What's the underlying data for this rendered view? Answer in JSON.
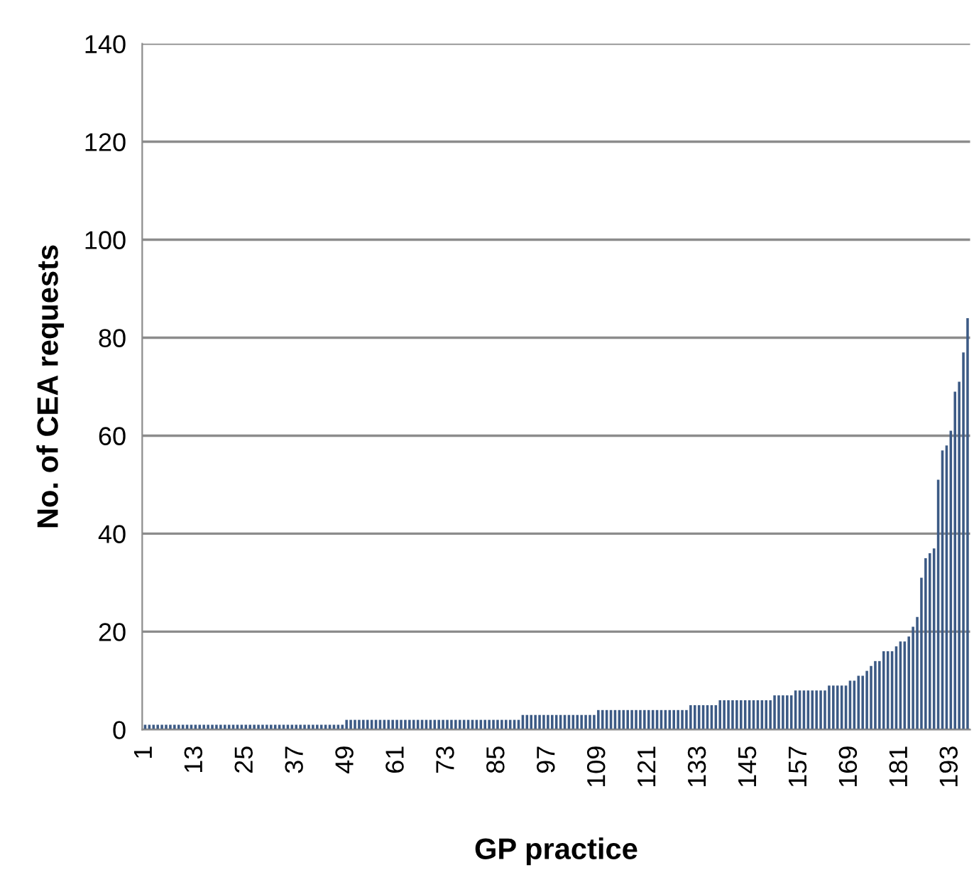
{
  "chart_data": {
    "type": "bar",
    "xlabel": "GP practice",
    "ylabel": "No. of CEA requests",
    "categories": [
      "1",
      null,
      null,
      null,
      null,
      null,
      null,
      null,
      null,
      null,
      null,
      null,
      "13",
      null,
      null,
      null,
      null,
      null,
      null,
      null,
      null,
      null,
      null,
      null,
      "25",
      null,
      null,
      null,
      null,
      null,
      null,
      null,
      null,
      null,
      null,
      null,
      "37",
      null,
      null,
      null,
      null,
      null,
      null,
      null,
      null,
      null,
      null,
      null,
      "49",
      null,
      null,
      null,
      null,
      null,
      null,
      null,
      null,
      null,
      null,
      null,
      "61",
      null,
      null,
      null,
      null,
      null,
      null,
      null,
      null,
      null,
      null,
      null,
      "73",
      null,
      null,
      null,
      null,
      null,
      null,
      null,
      null,
      null,
      null,
      null,
      "85",
      null,
      null,
      null,
      null,
      null,
      null,
      null,
      null,
      null,
      null,
      null,
      "97",
      null,
      null,
      null,
      null,
      null,
      null,
      null,
      null,
      null,
      null,
      null,
      "109",
      null,
      null,
      null,
      null,
      null,
      null,
      null,
      null,
      null,
      null,
      null,
      "121",
      null,
      null,
      null,
      null,
      null,
      null,
      null,
      null,
      null,
      null,
      null,
      "133",
      null,
      null,
      null,
      null,
      null,
      null,
      null,
      null,
      null,
      null,
      null,
      "145",
      null,
      null,
      null,
      null,
      null,
      null,
      null,
      null,
      null,
      null,
      null,
      "157",
      null,
      null,
      null,
      null,
      null,
      null,
      null,
      null,
      null,
      null,
      null,
      "169",
      null,
      null,
      null,
      null,
      null,
      null,
      null,
      null,
      null,
      null,
      null,
      "181",
      null,
      null,
      null,
      null,
      null,
      null,
      null,
      null,
      null,
      null,
      null,
      "193",
      null,
      null,
      null,
      null
    ],
    "values": [
      1,
      1,
      1,
      1,
      1,
      1,
      1,
      1,
      1,
      1,
      1,
      1,
      1,
      1,
      1,
      1,
      1,
      1,
      1,
      1,
      1,
      1,
      1,
      1,
      1,
      1,
      1,
      1,
      1,
      1,
      1,
      1,
      1,
      1,
      1,
      1,
      1,
      1,
      1,
      1,
      1,
      1,
      1,
      1,
      1,
      1,
      1,
      1,
      2,
      2,
      2,
      2,
      2,
      2,
      2,
      2,
      2,
      2,
      2,
      2,
      2,
      2,
      2,
      2,
      2,
      2,
      2,
      2,
      2,
      2,
      2,
      2,
      2,
      2,
      2,
      2,
      2,
      2,
      2,
      2,
      2,
      2,
      2,
      2,
      2,
      2,
      2,
      2,
      2,
      2,
      3,
      3,
      3,
      3,
      3,
      3,
      3,
      3,
      3,
      3,
      3,
      3,
      3,
      3,
      3,
      3,
      3,
      3,
      4,
      4,
      4,
      4,
      4,
      4,
      4,
      4,
      4,
      4,
      4,
      4,
      4,
      4,
      4,
      4,
      4,
      4,
      4,
      4,
      4,
      4,
      5,
      5,
      5,
      5,
      5,
      5,
      5,
      6,
      6,
      6,
      6,
      6,
      6,
      6,
      6,
      6,
      6,
      6,
      6,
      6,
      7,
      7,
      7,
      7,
      7,
      8,
      8,
      8,
      8,
      8,
      8,
      8,
      8,
      9,
      9,
      9,
      9,
      9,
      10,
      10,
      11,
      11,
      12,
      13,
      14,
      14,
      16,
      16,
      16,
      17,
      18,
      18,
      19,
      21,
      23,
      31,
      35,
      36,
      37,
      51,
      57,
      58,
      61,
      69,
      71,
      77,
      84
    ],
    "color": "#3c5a85",
    "ylim": [
      0,
      140
    ],
    "yticks": [
      0,
      20,
      40,
      60,
      80,
      100,
      120,
      140
    ],
    "grid": "y"
  }
}
